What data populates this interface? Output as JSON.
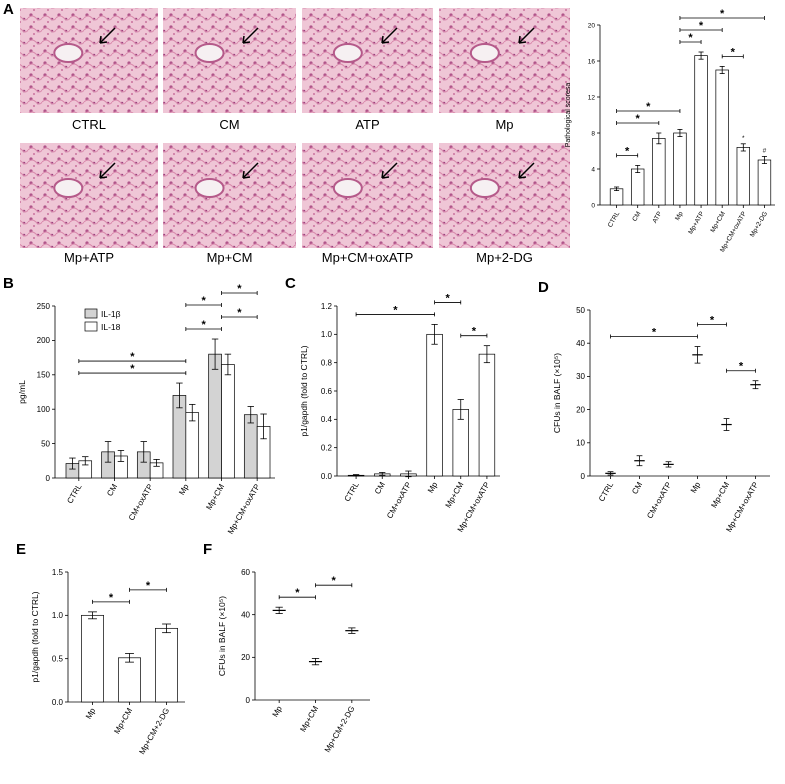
{
  "histology": {
    "panel": "A",
    "images": [
      "CTRL",
      "CM",
      "ATP",
      "Mp",
      "Mp+ATP",
      "Mp+CM",
      "Mp+CM+oxATP",
      "Mp+2-DG"
    ]
  },
  "chart_data": [
    {
      "type": "bar",
      "panel": "",
      "y_label": "Pathological scoresa",
      "categories": [
        "CTRL",
        "CM",
        "ATP",
        "Mp",
        "Mp+ATP",
        "Mp+CM",
        "Mp+CM+oxATP",
        "Mp+2-DG"
      ],
      "values": [
        1.8,
        4.0,
        7.4,
        8.0,
        16.6,
        15.0,
        6.4,
        5.0
      ],
      "errors": [
        0.2,
        0.4,
        0.6,
        0.4,
        0.4,
        0.4,
        0.4,
        0.4
      ],
      "color": "#ffffff",
      "ylim": [
        0,
        20
      ],
      "yticks": [
        0,
        4,
        8,
        12,
        16,
        20
      ],
      "brackets": [
        {
          "from": "CTRL",
          "to": "CM",
          "label": "*"
        },
        {
          "from": "CTRL",
          "to": "ATP",
          "label": "*"
        },
        {
          "from": "CTRL",
          "to": "Mp",
          "label": "*"
        },
        {
          "from": "Mp",
          "to": "Mp+ATP",
          "label": "*"
        },
        {
          "from": "Mp+CM",
          "to": "Mp+CM+oxATP",
          "label": "*"
        },
        {
          "from": "Mp",
          "to": "Mp+CM",
          "label": "*"
        },
        {
          "from": "Mp",
          "to": "Mp+2-DG",
          "label": "*"
        }
      ],
      "annotations": [
        {
          "category": "Mp+CM+oxATP",
          "label": "*"
        },
        {
          "category": "Mp+2-DG",
          "label": "#"
        }
      ]
    },
    {
      "type": "bar",
      "panel": "B",
      "y_label": "pg/mL",
      "categories": [
        "CTRL",
        "CM",
        "CM+oxATP",
        "Mp",
        "Mp+CM",
        "Mp+CM+oxATP"
      ],
      "series": [
        {
          "name": "IL-1β",
          "color": "#d3d3d3",
          "values": [
            21,
            38,
            38,
            120,
            180,
            92
          ],
          "errors": [
            8,
            15,
            15,
            18,
            22,
            12
          ]
        },
        {
          "name": "IL-18",
          "color": "#ffffff",
          "values": [
            25,
            32,
            22,
            95,
            165,
            75
          ],
          "errors": [
            6,
            8,
            5,
            12,
            15,
            18
          ]
        }
      ],
      "ylim": [
        0,
        250
      ],
      "yticks": [
        0,
        50,
        100,
        150,
        200,
        250
      ],
      "brackets": [
        {
          "from": "CTRL",
          "to": "Mp",
          "label": "*"
        },
        {
          "from": "CTRL",
          "to": "Mp",
          "label": "*"
        },
        {
          "from": "Mp",
          "to": "Mp+CM",
          "label": "*"
        },
        {
          "from": "Mp+CM",
          "to": "Mp+CM+oxATP",
          "label": "*"
        },
        {
          "from": "Mp",
          "to": "Mp+CM",
          "label": "*"
        },
        {
          "from": "Mp+CM",
          "to": "Mp+CM+oxATP",
          "label": "*"
        }
      ]
    },
    {
      "type": "bar",
      "panel": "C",
      "y_label": "p1/gapdh (fold to CTRL)",
      "categories": [
        "CTRL",
        "CM",
        "CM+oxATP",
        "Mp",
        "Mp+CM",
        "Mp+CM+oxATP"
      ],
      "values": [
        0.005,
        0.015,
        0.015,
        1.0,
        0.47,
        0.86
      ],
      "errors": [
        0.005,
        0.01,
        0.02,
        0.07,
        0.07,
        0.06
      ],
      "color": "#ffffff",
      "ylim": [
        0,
        1.2
      ],
      "yticks": [
        {
          "value": 0,
          "label": "0.0"
        },
        0.2,
        0.4,
        0.6,
        0.8,
        {
          "value": 1,
          "label": "1.0"
        },
        1.2
      ],
      "brackets": [
        {
          "from": "Mp+CM",
          "to": "Mp+CM+oxATP",
          "label": "*"
        },
        {
          "from": "CTRL",
          "to": "Mp",
          "label": "*"
        },
        {
          "from": "Mp",
          "to": "Mp+CM",
          "label": "*"
        }
      ]
    },
    {
      "type": "dot",
      "panel": "D",
      "y_label": "CFUs in BALF (×10⁵)",
      "categories": [
        "CTRL",
        "CM",
        "CM+oxATP",
        "Mp",
        "Mp+CM",
        "Mp+CM+oxATP"
      ],
      "values": [
        0.8,
        4.6,
        3.5,
        36.5,
        15.5,
        27.5
      ],
      "errors": [
        0.5,
        1.5,
        0.8,
        2.5,
        1.8,
        1.2
      ],
      "color": "#000000",
      "ylim": [
        0,
        50
      ],
      "yticks": [
        0,
        10,
        20,
        30,
        40,
        50
      ],
      "brackets": [
        {
          "from": "Mp+CM",
          "to": "Mp+CM+oxATP",
          "label": "*"
        },
        {
          "from": "CTRL",
          "to": "Mp",
          "label": "*"
        },
        {
          "from": "Mp",
          "to": "Mp+CM",
          "label": "*"
        }
      ]
    },
    {
      "type": "bar",
      "panel": "E",
      "y_label": "p1/gapdh (fold to CTRL)",
      "categories": [
        "Mp",
        "Mp+CM",
        "Mp+CM+2-DG"
      ],
      "values": [
        1.0,
        0.51,
        0.85
      ],
      "errors": [
        0.04,
        0.05,
        0.05
      ],
      "color": "#ffffff",
      "ylim": [
        0,
        1.5
      ],
      "yticks": [
        {
          "value": 0,
          "label": "0.0"
        },
        0.5,
        {
          "value": 1,
          "label": "1.0"
        },
        1.5
      ],
      "brackets": [
        {
          "from": "Mp",
          "to": "Mp+CM",
          "label": "*"
        },
        {
          "from": "Mp+CM",
          "to": "Mp+CM+2-DG",
          "label": "*"
        }
      ]
    },
    {
      "type": "dot",
      "panel": "F",
      "y_label": "CFUs in BALF (×10⁵)",
      "categories": [
        "Mp",
        "Mp+CM",
        "Mp+CM+2-DG"
      ],
      "values": [
        42,
        18,
        32.5
      ],
      "errors": [
        1.5,
        1.5,
        1.3
      ],
      "color": "#000000",
      "ylim": [
        0,
        60
      ],
      "yticks": [
        0,
        20,
        40,
        60
      ],
      "brackets": [
        {
          "from": "Mp",
          "to": "Mp+CM",
          "label": "*"
        },
        {
          "from": "Mp+CM",
          "to": "Mp+CM+2-DG",
          "label": "*"
        }
      ]
    }
  ]
}
